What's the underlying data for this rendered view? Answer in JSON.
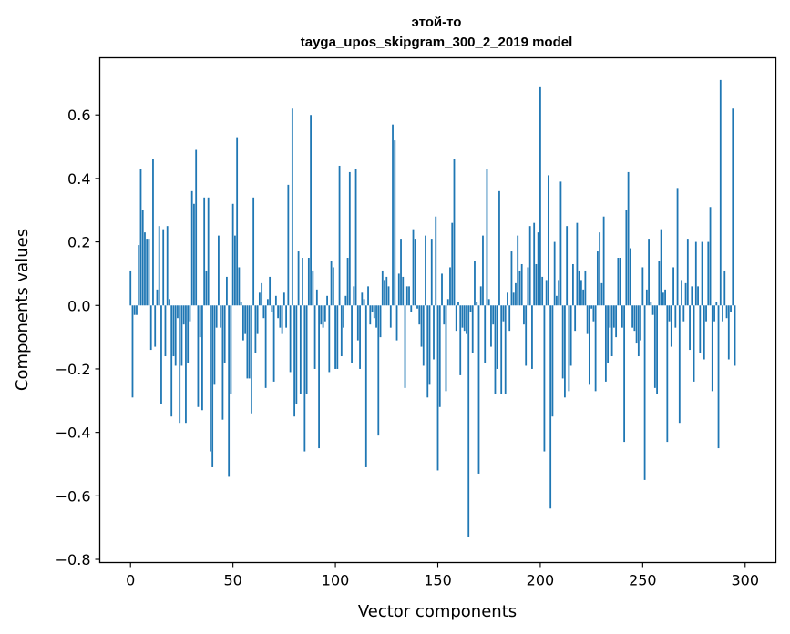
{
  "chart_data": {
    "type": "bar",
    "title": "этой-то",
    "subtitle": "tayga_upos_skipgram_300_2_2019 model",
    "xlabel": "Vector components",
    "ylabel": "Components values",
    "xlim": [
      -15,
      315
    ],
    "ylim": [
      -0.81,
      0.78
    ],
    "xticks": [
      0,
      50,
      100,
      150,
      200,
      250,
      300
    ],
    "yticks": [
      -0.8,
      -0.6,
      -0.4,
      -0.2,
      0.0,
      0.2,
      0.4,
      0.6
    ],
    "ytick_labels": [
      "−0.8",
      "−0.6",
      "−0.4",
      "−0.2",
      "0.0",
      "0.2",
      "0.4",
      "0.6"
    ],
    "bar_color": "#1f77b4",
    "grid": false,
    "values": [
      0.11,
      -0.29,
      -0.03,
      -0.03,
      0.19,
      0.43,
      0.3,
      0.23,
      0.21,
      0.21,
      -0.14,
      0.46,
      -0.13,
      0.05,
      0.25,
      -0.31,
      0.24,
      -0.16,
      0.25,
      0.02,
      -0.35,
      -0.16,
      -0.19,
      -0.04,
      -0.37,
      -0.19,
      -0.06,
      -0.37,
      -0.18,
      -0.05,
      0.36,
      0.32,
      0.49,
      -0.32,
      -0.1,
      -0.33,
      0.34,
      0.11,
      0.34,
      -0.46,
      -0.51,
      -0.25,
      -0.07,
      0.22,
      -0.07,
      -0.36,
      -0.18,
      0.09,
      -0.54,
      -0.28,
      0.32,
      0.22,
      0.53,
      0.12,
      0.01,
      -0.11,
      -0.09,
      -0.23,
      -0.23,
      -0.34,
      0.34,
      -0.15,
      -0.09,
      0.04,
      0.07,
      -0.04,
      -0.26,
      0.02,
      0.09,
      -0.02,
      -0.24,
      0.03,
      -0.04,
      -0.07,
      -0.09,
      0.04,
      -0.07,
      0.38,
      -0.21,
      0.62,
      -0.35,
      -0.31,
      0.17,
      -0.28,
      0.15,
      -0.46,
      -0.28,
      0.15,
      0.6,
      0.11,
      -0.2,
      0.05,
      -0.45,
      -0.06,
      -0.07,
      -0.05,
      0.03,
      -0.21,
      0.14,
      0.12,
      -0.2,
      -0.2,
      0.44,
      -0.16,
      -0.07,
      0.03,
      0.15,
      0.42,
      -0.18,
      0.06,
      0.43,
      -0.11,
      -0.2,
      0.04,
      0.02,
      -0.51,
      0.06,
      -0.06,
      -0.02,
      -0.04,
      -0.07,
      -0.41,
      -0.1,
      0.11,
      0.08,
      0.09,
      0.06,
      -0.07,
      0.57,
      0.52,
      -0.11,
      0.1,
      0.21,
      0.09,
      -0.26,
      0.06,
      0.06,
      -0.02,
      0.24,
      0.21,
      -0.01,
      -0.06,
      -0.13,
      -0.19,
      0.22,
      -0.29,
      -0.25,
      0.21,
      -0.17,
      0.28,
      -0.52,
      -0.32,
      0.1,
      -0.06,
      -0.27,
      0.02,
      0.12,
      0.26,
      0.46,
      -0.08,
      0.01,
      -0.22,
      -0.07,
      -0.08,
      -0.09,
      -0.73,
      -0.02,
      -0.15,
      0.14,
      0.01,
      -0.53,
      0.06,
      0.22,
      -0.18,
      0.43,
      0.02,
      -0.13,
      -0.06,
      -0.28,
      -0.2,
      0.36,
      -0.28,
      -0.05,
      -0.28,
      0.04,
      -0.08,
      0.17,
      0.04,
      0.07,
      0.22,
      0.11,
      0.13,
      -0.06,
      -0.19,
      0.12,
      0.25,
      -0.2,
      0.26,
      0.13,
      0.23,
      0.69,
      0.09,
      -0.46,
      0.08,
      0.41,
      -0.64,
      -0.35,
      0.2,
      0.03,
      0.08,
      0.39,
      -0.23,
      -0.29,
      0.25,
      -0.27,
      -0.19,
      0.13,
      -0.08,
      0.26,
      0.11,
      0.08,
      0.05,
      0.11,
      -0.09,
      -0.25,
      -0.01,
      -0.05,
      -0.27,
      0.17,
      0.23,
      0.07,
      0.28,
      -0.24,
      -0.18,
      -0.07,
      -0.16,
      -0.07,
      -0.1,
      0.15,
      0.15,
      -0.07,
      -0.43,
      0.3,
      0.42,
      0.18,
      -0.07,
      -0.08,
      -0.12,
      -0.16,
      -0.11,
      0.12,
      -0.55,
      0.05,
      0.21,
      0.01,
      -0.03,
      -0.26,
      -0.28,
      0.14,
      0.24,
      0.04,
      0.05,
      -0.43,
      -0.05,
      -0.13,
      0.12,
      -0.07,
      0.37,
      -0.37,
      0.08,
      -0.05,
      0.07,
      0.21,
      -0.14,
      0.06,
      -0.24,
      0.2,
      0.06,
      -0.15,
      0.2,
      -0.17,
      -0.05,
      0.2,
      0.31,
      -0.27,
      -0.05,
      0.01,
      -0.45,
      0.71,
      -0.05,
      0.11,
      -0.04,
      -0.17,
      -0.02,
      0.62,
      -0.19
    ]
  }
}
